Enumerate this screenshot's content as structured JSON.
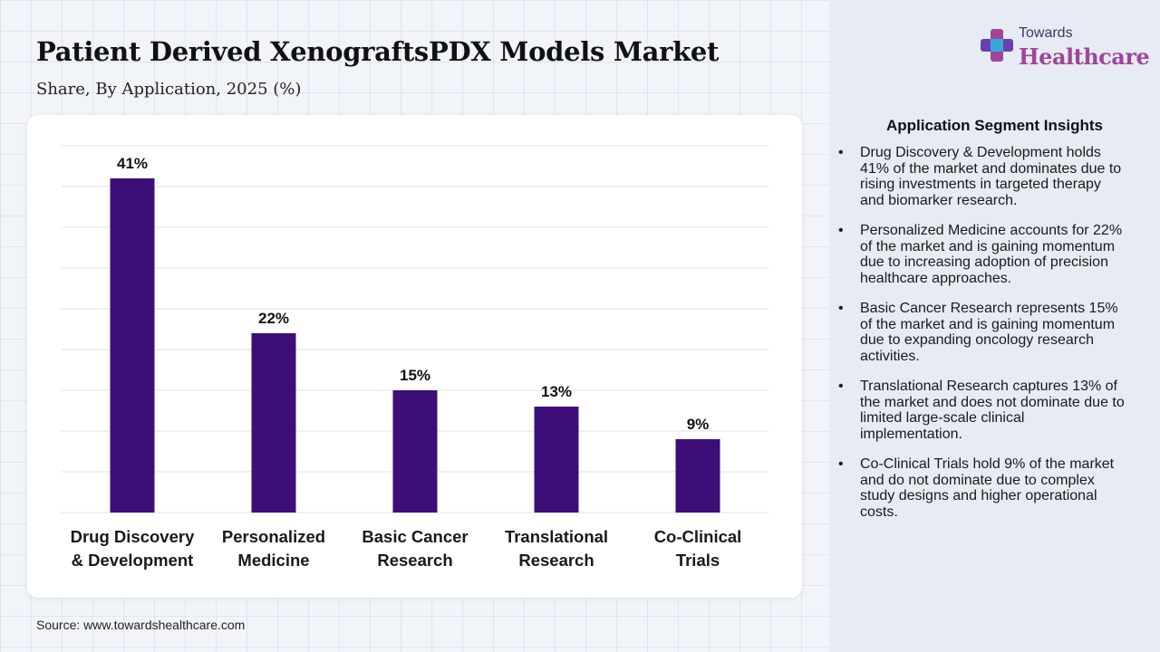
{
  "header": {
    "title": "Patient Derived XenograftsPDX Models Market",
    "subtitle": "Share, By Application, 2025 (%)"
  },
  "logo": {
    "top_text": "Towards",
    "main_text": "Healthcare"
  },
  "colors": {
    "bar": "#3d0e78",
    "grid": "#e2e2e2",
    "logo_accent": "#a0459a"
  },
  "chart_data": {
    "type": "bar",
    "title": "Patient Derived XenograftsPDX Models Market",
    "subtitle": "Share, By Application, 2025 (%)",
    "categories": [
      [
        "Drug Discovery",
        "& Development"
      ],
      [
        "Personalized",
        "Medicine"
      ],
      [
        "Basic Cancer",
        "Research"
      ],
      [
        "Translational",
        "Research"
      ],
      [
        "Co-Clinical",
        "Trials"
      ]
    ],
    "values": [
      41,
      22,
      15,
      13,
      9
    ],
    "data_labels": [
      "41%",
      "22%",
      "15%",
      "13%",
      "9%"
    ],
    "xlabel": "",
    "ylabel": "",
    "ylim": [
      0,
      45
    ],
    "grid": true,
    "legend": "none"
  },
  "insights": {
    "title": "Application Segment Insights",
    "items": [
      "Drug Discovery & Development holds 41% of the market and dominates due to rising investments in targeted therapy and biomarker research.",
      "Personalized Medicine accounts for 22% of the market and is gaining momentum due to increasing adoption of precision healthcare approaches.",
      "Basic Cancer Research represents 15% of the market and is gaining momentum due to expanding oncology research activities.",
      "Translational Research captures 13% of the market and does not dominate due to limited large-scale clinical implementation.",
      "Co-Clinical Trials hold 9% of the market and do not dominate due to complex study designs and higher operational costs."
    ]
  },
  "footer": {
    "source": "Source: www.towardshealthcare.com"
  }
}
